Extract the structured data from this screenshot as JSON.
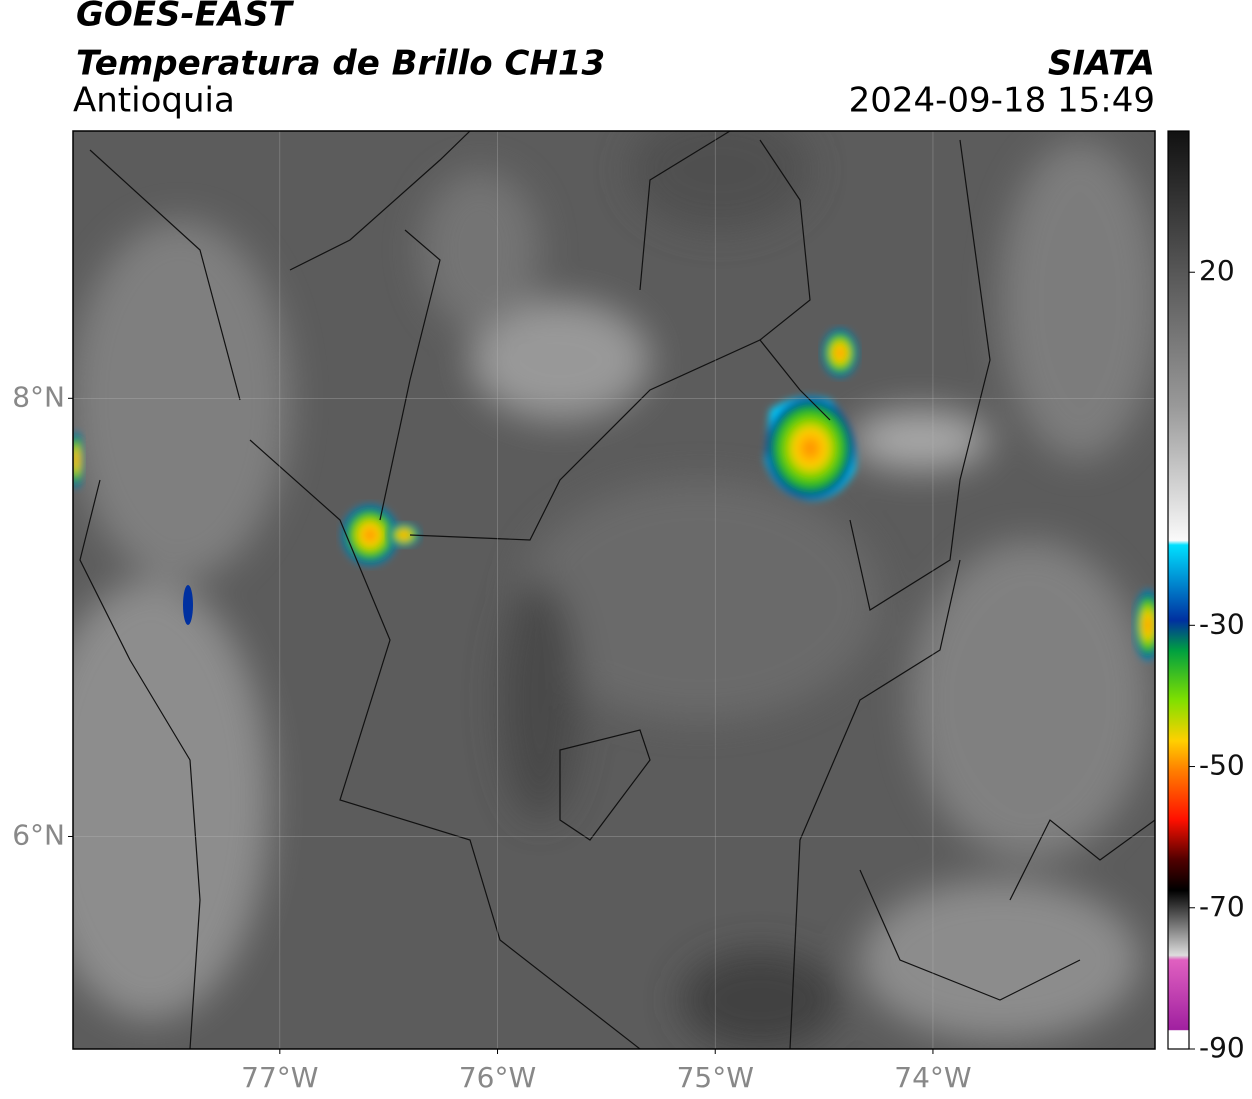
{
  "header": {
    "title": "GOES-EAST",
    "subtitle": "Temperatura de Brillo CH13",
    "region": "Antioquia",
    "source": "SIATA",
    "timestamp": "2024-09-18 15:49"
  },
  "map": {
    "xlim": [
      -77.95,
      -72.98
    ],
    "ylim": [
      5.03,
      9.22
    ],
    "xticks": [
      {
        "value": -77,
        "label": "77°W"
      },
      {
        "value": -76,
        "label": "76°W"
      },
      {
        "value": -75,
        "label": "75°W"
      },
      {
        "value": -74,
        "label": "74°W"
      }
    ],
    "yticks": [
      {
        "value": 8,
        "label": "8°N"
      },
      {
        "value": 6,
        "label": "6°N"
      }
    ],
    "grid": true
  },
  "colorbar": {
    "lim": [
      -90,
      40
    ],
    "ticks": [
      20,
      -30,
      -50,
      -70,
      -90
    ]
  }
}
